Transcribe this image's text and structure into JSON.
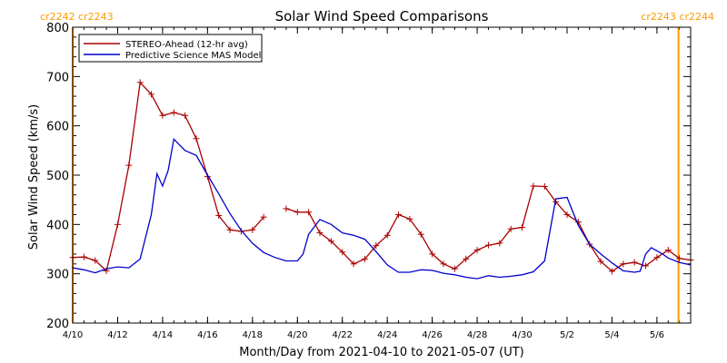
{
  "chart_data": {
    "type": "line",
    "title": "Solar Wind Speed Comparisons",
    "xlabel": "Month/Day from 2021-04-10 to 2021-05-07 (UT)",
    "ylabel": "Solar Wind Speed (km/s)",
    "ylim": [
      200,
      800
    ],
    "xlim": [
      "2021-04-10",
      "2021-05-07"
    ],
    "x_tick_labels": [
      "4/10",
      "4/12",
      "4/14",
      "4/16",
      "4/18",
      "4/20",
      "4/22",
      "4/24",
      "4/26",
      "4/28",
      "4/30",
      "5/2",
      "5/4",
      "5/6"
    ],
    "y_tick_labels": [
      "200",
      "300",
      "400",
      "500",
      "600",
      "700",
      "800"
    ],
    "legend_position": "top-left",
    "colors": {
      "stereo": "#aa0000",
      "model": "#0000cc",
      "carrington_marker": "#ff9900"
    },
    "carrington": {
      "left_label": "cr2242 cr2243",
      "right_label": "cr2243 cr2244",
      "boundaries": [
        "2021-04-10T00:00",
        "2021-05-06T23:00"
      ]
    },
    "series": [
      {
        "name": "STEREO-Ahead (12-hr avg)",
        "marker": "+",
        "points": [
          [
            "2021-04-10T00:00",
            333
          ],
          [
            "2021-04-10T12:00",
            334
          ],
          [
            "2021-04-11T00:00",
            327
          ],
          [
            "2021-04-11T12:00",
            306
          ],
          [
            "2021-04-12T00:00",
            400
          ],
          [
            "2021-04-12T12:00",
            520
          ],
          [
            "2021-04-13T00:00",
            688
          ],
          [
            "2021-04-13T12:00",
            664
          ],
          [
            "2021-04-14T00:00",
            621
          ],
          [
            "2021-04-14T12:00",
            627
          ],
          [
            "2021-04-15T00:00",
            621
          ],
          [
            "2021-04-15T12:00",
            574
          ],
          [
            "2021-04-16T00:00",
            497
          ],
          [
            "2021-04-16T12:00",
            418
          ],
          [
            "2021-04-17T00:00",
            389
          ],
          [
            "2021-04-17T12:00",
            386
          ],
          [
            "2021-04-18T00:00",
            389
          ],
          [
            "2021-04-18T12:00",
            415
          ],
          null,
          [
            "2021-04-19T12:00",
            432
          ],
          [
            "2021-04-20T00:00",
            425
          ],
          [
            "2021-04-20T12:00",
            425
          ],
          [
            "2021-04-21T00:00",
            383
          ],
          [
            "2021-04-21T12:00",
            366
          ],
          [
            "2021-04-22T00:00",
            344
          ],
          [
            "2021-04-22T12:00",
            320
          ],
          [
            "2021-04-23T00:00",
            330
          ],
          [
            "2021-04-23T12:00",
            357
          ],
          [
            "2021-04-24T00:00",
            378
          ],
          [
            "2021-04-24T12:00",
            420
          ],
          [
            "2021-04-25T00:00",
            411
          ],
          [
            "2021-04-25T12:00",
            380
          ],
          [
            "2021-04-26T00:00",
            340
          ],
          [
            "2021-04-26T12:00",
            320
          ],
          [
            "2021-04-27T00:00",
            310
          ],
          [
            "2021-04-27T12:00",
            330
          ],
          [
            "2021-04-28T00:00",
            348
          ],
          [
            "2021-04-28T12:00",
            358
          ],
          [
            "2021-04-29T00:00",
            362
          ],
          [
            "2021-04-29T12:00",
            391
          ],
          [
            "2021-04-30T00:00",
            394
          ],
          [
            "2021-04-30T12:00",
            478
          ],
          [
            "2021-05-01T00:00",
            477
          ],
          [
            "2021-05-01T12:00",
            446
          ],
          [
            "2021-05-02T00:00",
            420
          ],
          [
            "2021-05-02T12:00",
            405
          ],
          [
            "2021-05-03T00:00",
            360
          ],
          [
            "2021-05-03T12:00",
            325
          ],
          [
            "2021-05-04T00:00",
            305
          ],
          [
            "2021-05-04T12:00",
            320
          ],
          [
            "2021-05-05T00:00",
            323
          ],
          [
            "2021-05-05T12:00",
            316
          ],
          [
            "2021-05-06T00:00",
            333
          ],
          [
            "2021-05-06T12:00",
            348
          ],
          [
            "2021-05-07T00:00",
            331
          ],
          [
            "2021-05-07T12:00",
            328
          ]
        ]
      },
      {
        "name": "Predictive Science MAS Model",
        "marker": "",
        "points": [
          [
            "2021-04-10T00:00",
            312
          ],
          [
            "2021-04-10T12:00",
            308
          ],
          [
            "2021-04-11T00:00",
            302
          ],
          [
            "2021-04-11T12:00",
            310
          ],
          [
            "2021-04-12T00:00",
            314
          ],
          [
            "2021-04-12T12:00",
            312
          ],
          [
            "2021-04-13T00:00",
            330
          ],
          [
            "2021-04-13T12:00",
            420
          ],
          [
            "2021-04-13T18:00",
            503
          ],
          [
            "2021-04-14T00:00",
            478
          ],
          [
            "2021-04-14T06:00",
            510
          ],
          [
            "2021-04-14T12:00",
            573
          ],
          [
            "2021-04-15T00:00",
            550
          ],
          [
            "2021-04-15T12:00",
            540
          ],
          [
            "2021-04-16T00:00",
            500
          ],
          [
            "2021-04-16T12:00",
            462
          ],
          [
            "2021-04-17T00:00",
            422
          ],
          [
            "2021-04-17T12:00",
            388
          ],
          [
            "2021-04-18T00:00",
            362
          ],
          [
            "2021-04-18T12:00",
            343
          ],
          [
            "2021-04-19T00:00",
            333
          ],
          [
            "2021-04-19T12:00",
            326
          ],
          [
            "2021-04-20T00:00",
            326
          ],
          [
            "2021-04-20T06:00",
            340
          ],
          [
            "2021-04-20T12:00",
            380
          ],
          [
            "2021-04-21T00:00",
            410
          ],
          [
            "2021-04-21T12:00",
            400
          ],
          [
            "2021-04-22T00:00",
            383
          ],
          [
            "2021-04-22T12:00",
            378
          ],
          [
            "2021-04-23T00:00",
            370
          ],
          [
            "2021-04-23T12:00",
            345
          ],
          [
            "2021-04-24T00:00",
            318
          ],
          [
            "2021-04-24T12:00",
            303
          ],
          [
            "2021-04-25T00:00",
            303
          ],
          [
            "2021-04-25T12:00",
            308
          ],
          [
            "2021-04-26T00:00",
            307
          ],
          [
            "2021-04-26T12:00",
            301
          ],
          [
            "2021-04-27T00:00",
            298
          ],
          [
            "2021-04-27T12:00",
            293
          ],
          [
            "2021-04-28T00:00",
            290
          ],
          [
            "2021-04-28T12:00",
            296
          ],
          [
            "2021-04-29T00:00",
            293
          ],
          [
            "2021-04-29T12:00",
            295
          ],
          [
            "2021-04-30T00:00",
            298
          ],
          [
            "2021-04-30T12:00",
            304
          ],
          [
            "2021-05-01T00:00",
            326
          ],
          [
            "2021-05-01T12:00",
            452
          ],
          [
            "2021-05-02T00:00",
            455
          ],
          [
            "2021-05-02T12:00",
            398
          ],
          [
            "2021-05-03T00:00",
            360
          ],
          [
            "2021-05-03T12:00",
            340
          ],
          [
            "2021-05-04T00:00",
            322
          ],
          [
            "2021-05-04T12:00",
            306
          ],
          [
            "2021-05-05T00:00",
            303
          ],
          [
            "2021-05-05T06:00",
            305
          ],
          [
            "2021-05-05T12:00",
            340
          ],
          [
            "2021-05-05T18:00",
            353
          ],
          [
            "2021-05-06T06:00",
            340
          ],
          [
            "2021-05-06T12:00",
            332
          ],
          [
            "2021-05-07T00:00",
            323
          ],
          [
            "2021-05-07T12:00",
            318
          ]
        ]
      }
    ]
  }
}
